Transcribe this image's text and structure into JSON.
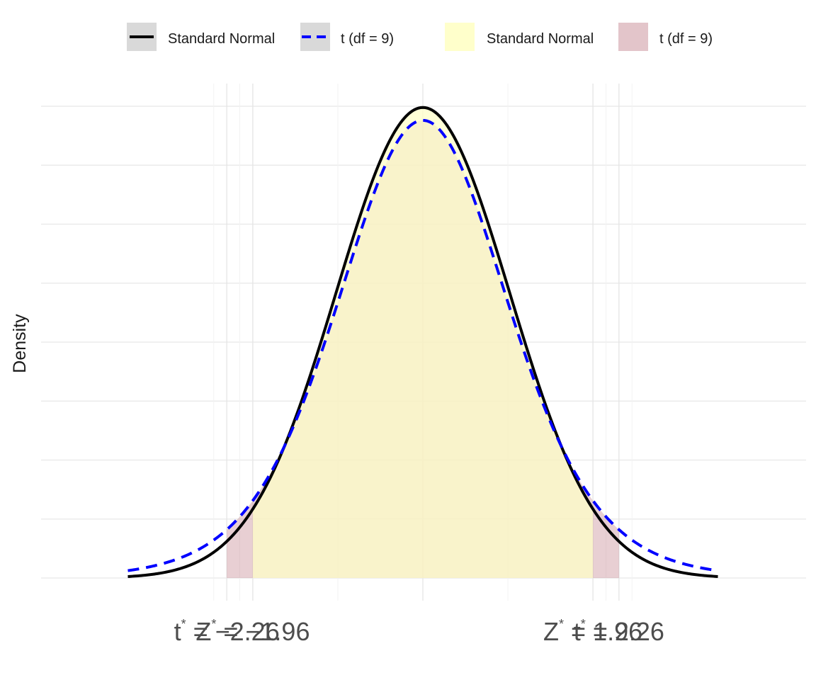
{
  "chart_data": {
    "type": "area",
    "title": "",
    "xlabel": "",
    "ylabel": "Density",
    "xlim": [
      -3.5,
      3.5
    ],
    "ylim": [
      0,
      0.4
    ],
    "grid": true,
    "legend_position": "top",
    "series": [
      {
        "name": "Standard Normal",
        "distribution": "normal",
        "line_style": "solid",
        "line_color": "#000000",
        "x_range": [
          -3.5,
          3.5
        ],
        "shaded_region": [
          -1.96,
          1.96
        ],
        "fill_color": "#ffffc8"
      },
      {
        "name": "t (df = 9)",
        "distribution": "t",
        "df": 9,
        "line_style": "dashed",
        "line_color": "#0000ff",
        "x_range": [
          -3.5,
          3.5
        ],
        "shaded_region": [
          -2.26,
          2.26
        ],
        "fill_color": "#c88c96"
      }
    ],
    "x_tick_labels": [
      {
        "label": "t* = −2.26",
        "base": "t",
        "rest": " = −2.26",
        "value": -2.26
      },
      {
        "label": "Z* = −1.96",
        "base": "Z",
        "rest": " = −1.96",
        "value": -1.96
      },
      {
        "label": "Z* = 1.96",
        "base": "Z",
        "rest": " = 1.96",
        "value": 1.96
      },
      {
        "label": "t* = 2.26",
        "base": "t",
        "rest": " = 2.26",
        "value": 2.26
      }
    ],
    "legend": {
      "line_entries": [
        "Standard Normal",
        "t (df = 9)"
      ],
      "fill_entries": [
        "Standard Normal",
        "t (df = 9)"
      ]
    }
  }
}
